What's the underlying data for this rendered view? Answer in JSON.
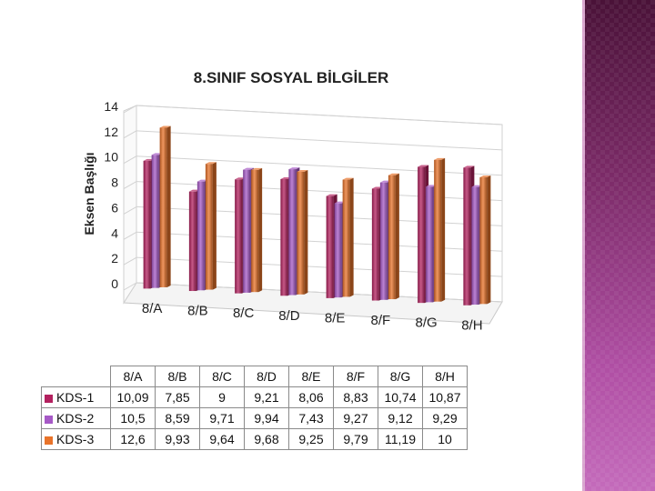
{
  "chart_data": {
    "type": "bar",
    "title": "8.SINIF SOSYAL BİLGİLER",
    "ylabel": "Eksen Başlığı",
    "xlabel": "",
    "categories": [
      "8/A",
      "8/B",
      "8/C",
      "8/D",
      "8/E",
      "8/F",
      "8/G",
      "8/H"
    ],
    "ylim": [
      0,
      14
    ],
    "yticks": [
      "0",
      "2",
      "4",
      "6",
      "8",
      "10",
      "12",
      "14"
    ],
    "grid": true,
    "legend": "table-bottom",
    "series": [
      {
        "name": "KDS-1",
        "color": "#b3215f",
        "values": [
          10.09,
          7.85,
          9,
          9.21,
          8.06,
          8.83,
          10.74,
          10.87
        ],
        "labels": [
          "10,09",
          "7,85",
          "9",
          "9,21",
          "8,06",
          "8,83",
          "10,74",
          "10,87"
        ]
      },
      {
        "name": "KDS-2",
        "color": "#a659c6",
        "values": [
          10.5,
          8.59,
          9.71,
          9.94,
          7.43,
          9.27,
          9.12,
          9.29
        ],
        "labels": [
          "10,5",
          "8,59",
          "9,71",
          "9,94",
          "7,43",
          "9,27",
          "9,12",
          "9,29"
        ]
      },
      {
        "name": "KDS-3",
        "color": "#e8732a",
        "values": [
          12.6,
          9.93,
          9.64,
          9.68,
          9.25,
          9.79,
          11.19,
          10
        ],
        "labels": [
          "12,6",
          "9,93",
          "9,64",
          "9,68",
          "9,25",
          "9,79",
          "11,19",
          "10"
        ]
      }
    ]
  }
}
